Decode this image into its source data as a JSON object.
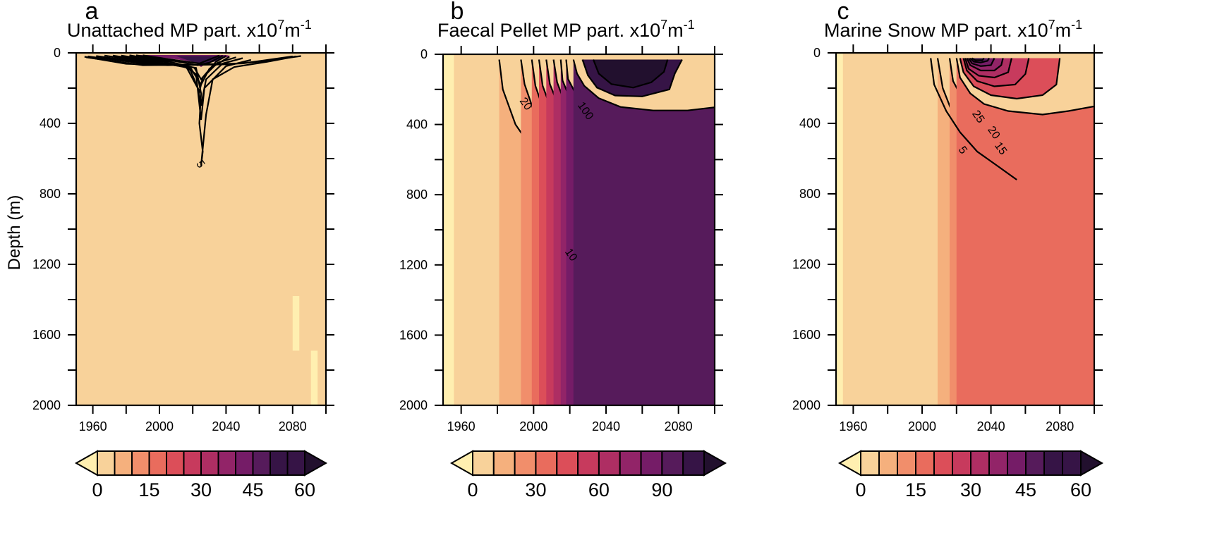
{
  "figure": {
    "y_axis_label": "Depth (m)"
  },
  "palette": [
    "#FFEFB0",
    "#F8D29A",
    "#F5B07D",
    "#F18E6B",
    "#E96C5D",
    "#DC4E59",
    "#C73A5D",
    "#AE2E63",
    "#922468",
    "#751C67",
    "#561B5B",
    "#361446",
    "#22102E"
  ],
  "chart_data": [
    {
      "type": "heatmap",
      "panel_letter": "a",
      "title": "Unattached MP part. x10",
      "title_exp": "7",
      "title_unit": "m",
      "title_unit_exp": "-1",
      "x_ticks": [
        1960,
        2000,
        2040,
        2080
      ],
      "xlim": [
        1950,
        2100
      ],
      "y_ticks": [
        0,
        400,
        800,
        1200,
        1600,
        2000
      ],
      "ylim": [
        2000,
        0
      ],
      "colorbar": {
        "ticks": [
          "0",
          "15",
          "30",
          "45",
          "60"
        ],
        "min": 0,
        "max": 60,
        "levels": 12
      },
      "contour_labels": [
        {
          "text": "5",
          "x": 2025,
          "y": 630
        }
      ],
      "description_values": {
        "max_value_location_year": 2025,
        "max_depth_of_5_contour_m": 630
      }
    },
    {
      "type": "heatmap",
      "panel_letter": "b",
      "title": "Faecal Pellet MP part. x10",
      "title_exp": "7",
      "title_unit": "m",
      "title_unit_exp": "-1",
      "x_ticks": [
        1960,
        2000,
        2040,
        2080
      ],
      "xlim": [
        1950,
        2100
      ],
      "y_ticks": [
        0,
        400,
        800,
        1200,
        1600,
        2000
      ],
      "ylim": [
        2000,
        0
      ],
      "colorbar": {
        "ticks": [
          "0",
          "30",
          "60",
          "90"
        ],
        "min": 0,
        "max": 110,
        "levels": 11
      },
      "contour_labels": [
        {
          "text": "20",
          "x": 1996,
          "y": 280
        },
        {
          "text": "100",
          "x": 2029,
          "y": 320
        },
        {
          "text": "10",
          "x": 2021,
          "y": 1140
        }
      ]
    },
    {
      "type": "heatmap",
      "panel_letter": "c",
      "title": "Marine Snow MP part. x10",
      "title_exp": "7",
      "title_unit": "m",
      "title_unit_exp": "-1",
      "x_ticks": [
        1960,
        2000,
        2040,
        2080
      ],
      "xlim": [
        1950,
        2100
      ],
      "y_ticks": [
        0,
        400,
        800,
        1200,
        1600,
        2000
      ],
      "ylim": [
        2000,
        0
      ],
      "colorbar": {
        "ticks": [
          "0",
          "15",
          "30",
          "45",
          "60"
        ],
        "min": 0,
        "max": 60,
        "levels": 12
      },
      "contour_labels": [
        {
          "text": "25",
          "x": 2033,
          "y": 360
        },
        {
          "text": "20",
          "x": 2042,
          "y": 450
        },
        {
          "text": "15",
          "x": 2046,
          "y": 540
        },
        {
          "text": "5",
          "x": 2024,
          "y": 550
        }
      ]
    }
  ]
}
